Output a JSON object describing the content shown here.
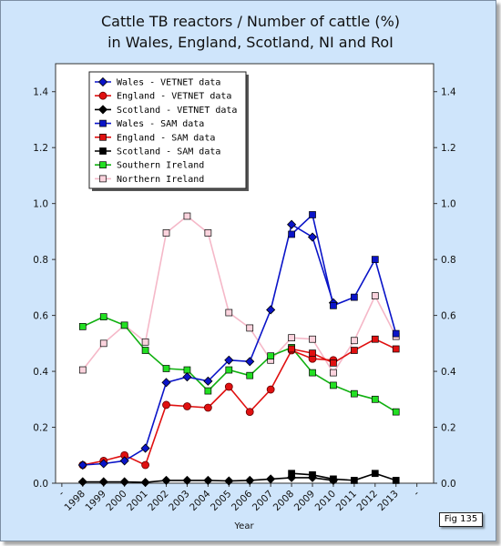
{
  "chart_data": {
    "type": "line",
    "title_line1": "Cattle TB reactors / Number of cattle (%)",
    "title_line2": "in Wales, England, Scotland, NI and RoI",
    "xlabel": "Year",
    "ylabel": "",
    "x_ticks": [
      "-",
      "1998",
      "1999",
      "2000",
      "2001",
      "2002",
      "2003",
      "2004",
      "2005",
      "2006",
      "2007",
      "2008",
      "2009",
      "2010",
      "2011",
      "2012",
      "2013",
      "-"
    ],
    "ylim": [
      0,
      1.5
    ],
    "y_ticks": [
      "0.0",
      "0.2",
      "0.4",
      "0.6",
      "0.8",
      "1.0",
      "1.2",
      "1.4"
    ],
    "y_tick_values": [
      0,
      0.2,
      0.4,
      0.6,
      0.8,
      1.0,
      1.2,
      1.4
    ],
    "legend_position": "top-left",
    "series": [
      {
        "name": "Wales - VETNET data",
        "color": "#0a14c8",
        "marker": "diamond",
        "x": [
          1998,
          1999,
          2000,
          2001,
          2002,
          2003,
          2004,
          2005,
          2006,
          2007,
          2008,
          2009,
          2010
        ],
        "y": [
          0.065,
          0.07,
          0.08,
          0.125,
          0.36,
          0.38,
          0.365,
          0.44,
          0.435,
          0.62,
          0.925,
          0.88,
          0.645
        ]
      },
      {
        "name": "England - VETNET data",
        "color": "#e01010",
        "marker": "circle",
        "x": [
          1998,
          1999,
          2000,
          2001,
          2002,
          2003,
          2004,
          2005,
          2006,
          2007,
          2008,
          2009,
          2010
        ],
        "y": [
          0.065,
          0.08,
          0.1,
          0.065,
          0.28,
          0.275,
          0.27,
          0.345,
          0.255,
          0.335,
          0.475,
          0.445,
          0.44
        ]
      },
      {
        "name": "Scotland - VETNET data",
        "color": "#000000",
        "marker": "diamond",
        "x": [
          1998,
          1999,
          2000,
          2001,
          2002,
          2003,
          2004,
          2005,
          2006,
          2007,
          2008,
          2009,
          2010
        ],
        "y": [
          0.005,
          0.005,
          0.005,
          0.003,
          0.01,
          0.01,
          0.01,
          0.008,
          0.01,
          0.015,
          0.02,
          0.02,
          0.01
        ]
      },
      {
        "name": "Wales - SAM data",
        "color": "#0a14c8",
        "marker": "square",
        "x": [
          2008,
          2009,
          2010,
          2011,
          2012,
          2013
        ],
        "y": [
          0.89,
          0.96,
          0.635,
          0.665,
          0.8,
          0.535
        ]
      },
      {
        "name": "England - SAM data",
        "color": "#e01010",
        "marker": "square",
        "x": [
          2008,
          2009,
          2010,
          2011,
          2012,
          2013
        ],
        "y": [
          0.48,
          0.465,
          0.43,
          0.475,
          0.515,
          0.48
        ]
      },
      {
        "name": "Scotland - SAM data",
        "color": "#000000",
        "marker": "square",
        "x": [
          2008,
          2009,
          2010,
          2011,
          2012,
          2013
        ],
        "y": [
          0.035,
          0.03,
          0.015,
          0.01,
          0.035,
          0.01
        ]
      },
      {
        "name": "Southern Ireland",
        "color": "#10b010",
        "fill": "#22e022",
        "marker": "square",
        "x": [
          1998,
          1999,
          2000,
          2001,
          2002,
          2003,
          2004,
          2005,
          2006,
          2007,
          2008,
          2009,
          2010,
          2011,
          2012,
          2013
        ],
        "y": [
          0.56,
          0.595,
          0.565,
          0.475,
          0.41,
          0.405,
          0.33,
          0.405,
          0.385,
          0.455,
          0.485,
          0.395,
          0.35,
          0.32,
          0.3,
          0.255
        ]
      },
      {
        "name": "Northern Ireland",
        "color": "#f5b8c8",
        "fill": "#fbd3dd",
        "marker": "square",
        "x": [
          1998,
          1999,
          2000,
          2001,
          2002,
          2003,
          2004,
          2005,
          2006,
          2007,
          2008,
          2009,
          2010,
          2011,
          2012,
          2013
        ],
        "y": [
          0.405,
          0.5,
          0.565,
          0.505,
          0.895,
          0.955,
          0.895,
          0.61,
          0.555,
          0.44,
          0.52,
          0.515,
          0.395,
          0.51,
          0.67,
          0.525
        ]
      }
    ]
  },
  "figure_label": "Fig 135",
  "colors": {
    "background": "#cfe5fb",
    "plot_area": "#ffffff"
  }
}
